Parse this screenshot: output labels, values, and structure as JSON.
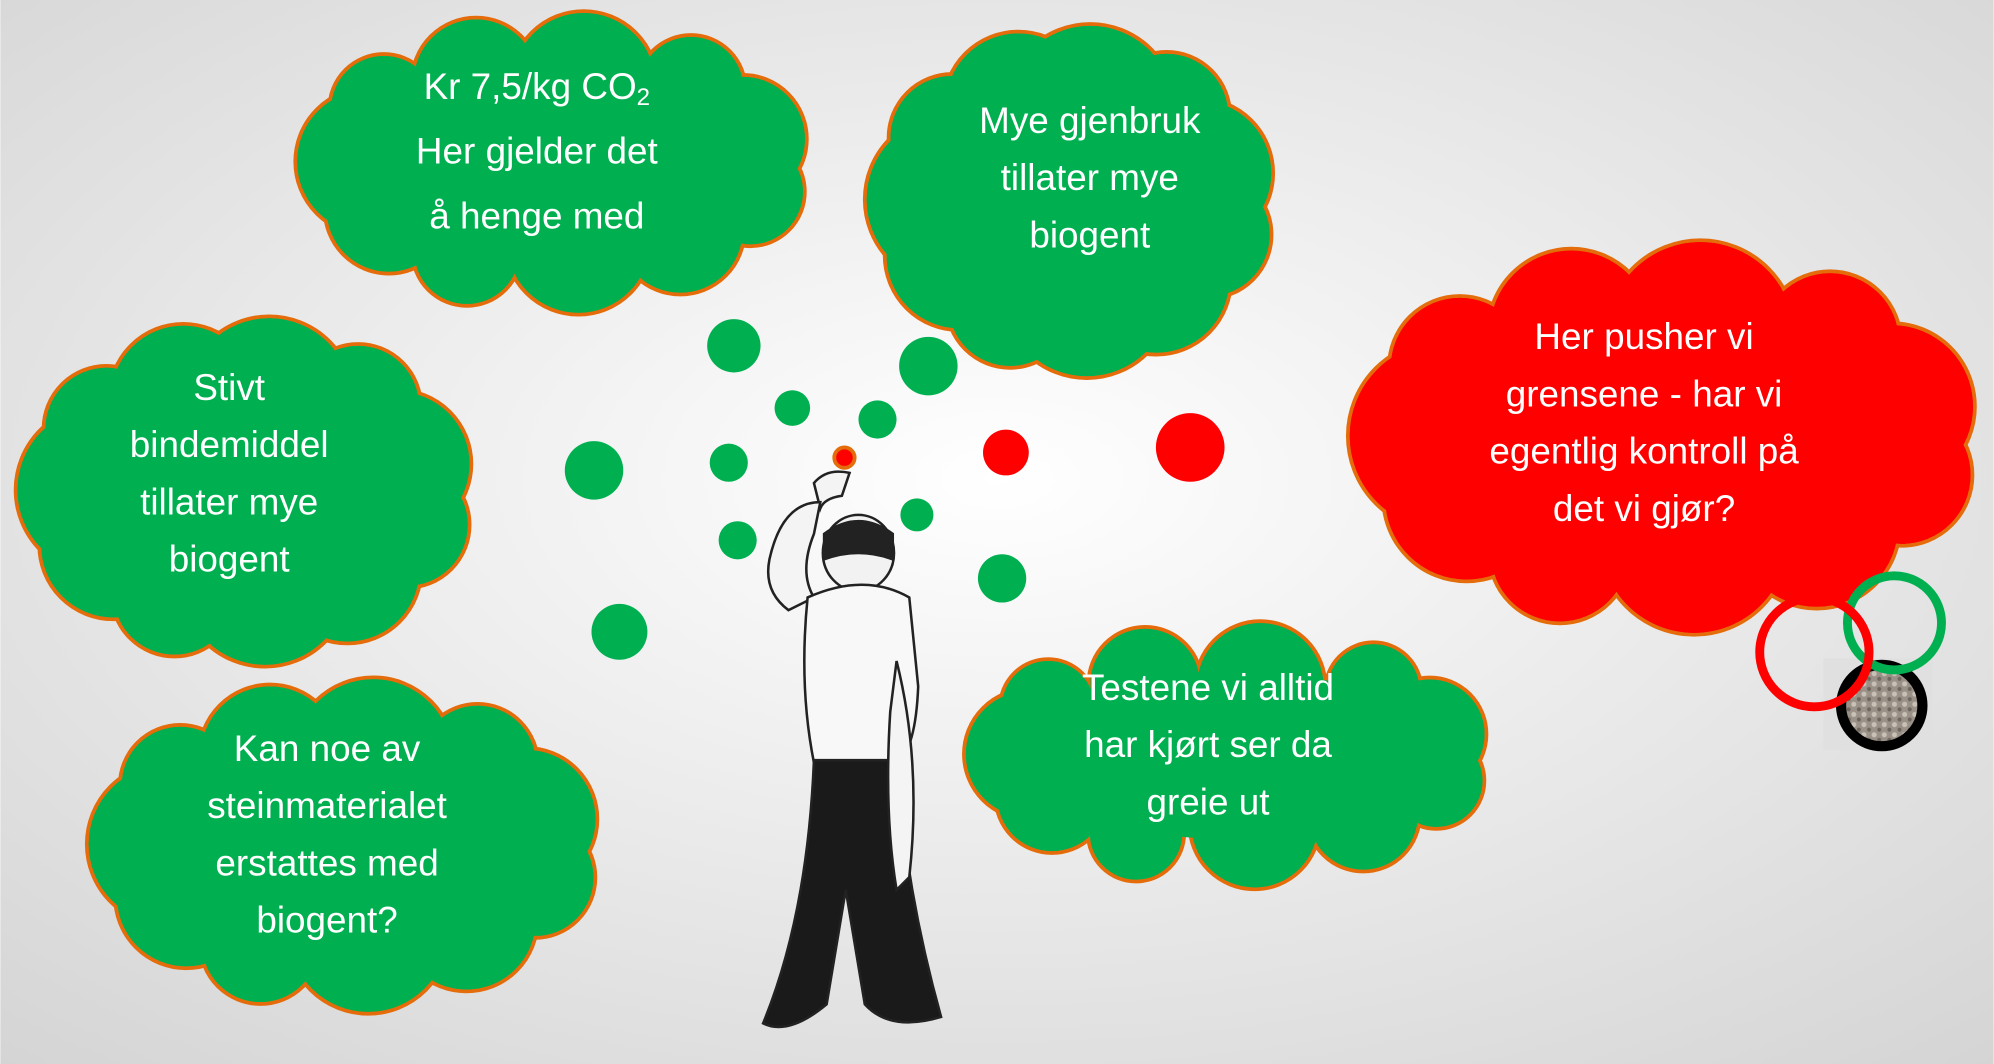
{
  "clouds": [
    {
      "color": "green",
      "lines": [
        {
          "text": "Kr 7,5/kg CO",
          "subscript": "2"
        },
        "Her gjelder det",
        "å henge med"
      ]
    },
    {
      "color": "green",
      "lines": [
        "Mye gjenbruk",
        "tillater mye",
        "biogent"
      ]
    },
    {
      "color": "green",
      "lines": [
        "Stivt",
        "bindemiddel",
        "tillater mye",
        "biogent"
      ]
    },
    {
      "color": "green",
      "lines": [
        "Kan noe av",
        "steinmaterialet",
        "erstattes med",
        "biogent?"
      ]
    },
    {
      "color": "green",
      "lines": [
        "Testene vi alltid",
        "har kjørt ser da",
        "greie ut"
      ]
    },
    {
      "color": "red",
      "lines": [
        "Her pusher vi",
        "grensene - har vi",
        "egentlig kontroll på",
        "det vi gjør?"
      ]
    }
  ]
}
